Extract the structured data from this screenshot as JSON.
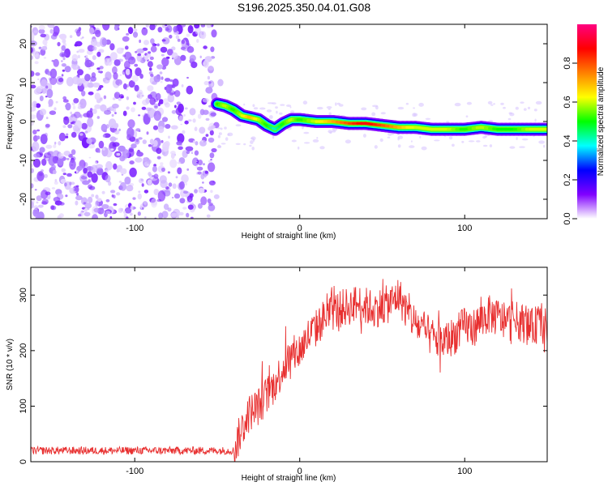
{
  "title": "S196.2025.350.04.01.G08",
  "chart_data": [
    {
      "type": "heatmap",
      "name": "spectrogram",
      "xlabel": "Height of straight line (km)",
      "ylabel": "Frequency (Hz)",
      "xlim": [
        -163,
        150
      ],
      "ylim": [
        -25,
        25
      ],
      "xticks": [
        -100,
        0,
        100
      ],
      "yticks": [
        20,
        10,
        0,
        -10,
        -20
      ],
      "colorbar": {
        "label": "Normalized spectral amplitude",
        "range": [
          0.0,
          1.0
        ],
        "ticks": [
          0.0,
          0.2,
          0.4,
          0.6,
          0.8
        ],
        "colors": [
          "#ffffff",
          "#8000ff",
          "#0000ff",
          "#00ffff",
          "#00ff00",
          "#ffff00",
          "#ff8000",
          "#ff0000",
          "#ff0080"
        ]
      },
      "noise_region_x": [
        -163,
        -50
      ],
      "ridge": {
        "x": [
          -50,
          -45,
          -40,
          -35,
          -30,
          -25,
          -20,
          -15,
          -10,
          -5,
          0,
          10,
          20,
          30,
          40,
          50,
          60,
          70,
          80,
          90,
          100,
          110,
          120,
          130,
          140,
          150
        ],
        "freq": [
          4.5,
          4.0,
          3.0,
          1.5,
          1.0,
          0.5,
          -1.0,
          -2.0,
          -0.5,
          0.5,
          0.5,
          0.0,
          0.0,
          -0.5,
          -0.5,
          -1.0,
          -1.5,
          -1.5,
          -2.0,
          -2.0,
          -2.0,
          -1.5,
          -2.0,
          -2.0,
          -2.0,
          -2.0
        ],
        "amplitude": [
          0.5,
          0.6,
          0.5,
          0.6,
          0.7,
          0.6,
          0.5,
          0.4,
          0.5,
          0.6,
          0.5,
          0.6,
          0.7,
          0.8,
          0.9,
          0.8,
          0.7,
          0.6,
          0.6,
          0.6,
          0.5,
          0.6,
          0.5,
          0.5,
          0.6,
          0.6
        ]
      }
    },
    {
      "type": "line",
      "name": "snr",
      "xlabel": "Height of straight line (km)",
      "ylabel": "SNR (10 * v/v)",
      "xlim": [
        -163,
        150
      ],
      "ylim": [
        0,
        350
      ],
      "xticks": [
        -100,
        0,
        100
      ],
      "yticks": [
        0,
        100,
        200,
        300
      ],
      "color": "#e83030",
      "series": [
        {
          "name": "SNR",
          "x": [
            -163,
            -150,
            -140,
            -130,
            -120,
            -110,
            -100,
            -90,
            -80,
            -70,
            -60,
            -50,
            -40,
            -35,
            -30,
            -25,
            -20,
            -15,
            -10,
            -5,
            0,
            5,
            10,
            15,
            20,
            25,
            30,
            35,
            40,
            45,
            50,
            55,
            60,
            65,
            70,
            75,
            80,
            85,
            90,
            95,
            100,
            105,
            110,
            115,
            120,
            125,
            130,
            135,
            140,
            145,
            150
          ],
          "y": [
            20,
            20,
            20,
            20,
            20,
            20,
            20,
            20,
            20,
            20,
            20,
            20,
            20,
            60,
            90,
            100,
            120,
            140,
            170,
            190,
            200,
            225,
            240,
            260,
            270,
            275,
            280,
            285,
            280,
            275,
            280,
            285,
            300,
            270,
            250,
            235,
            225,
            215,
            220,
            230,
            245,
            240,
            255,
            265,
            260,
            250,
            255,
            250,
            240,
            250,
            240
          ]
        }
      ]
    }
  ]
}
